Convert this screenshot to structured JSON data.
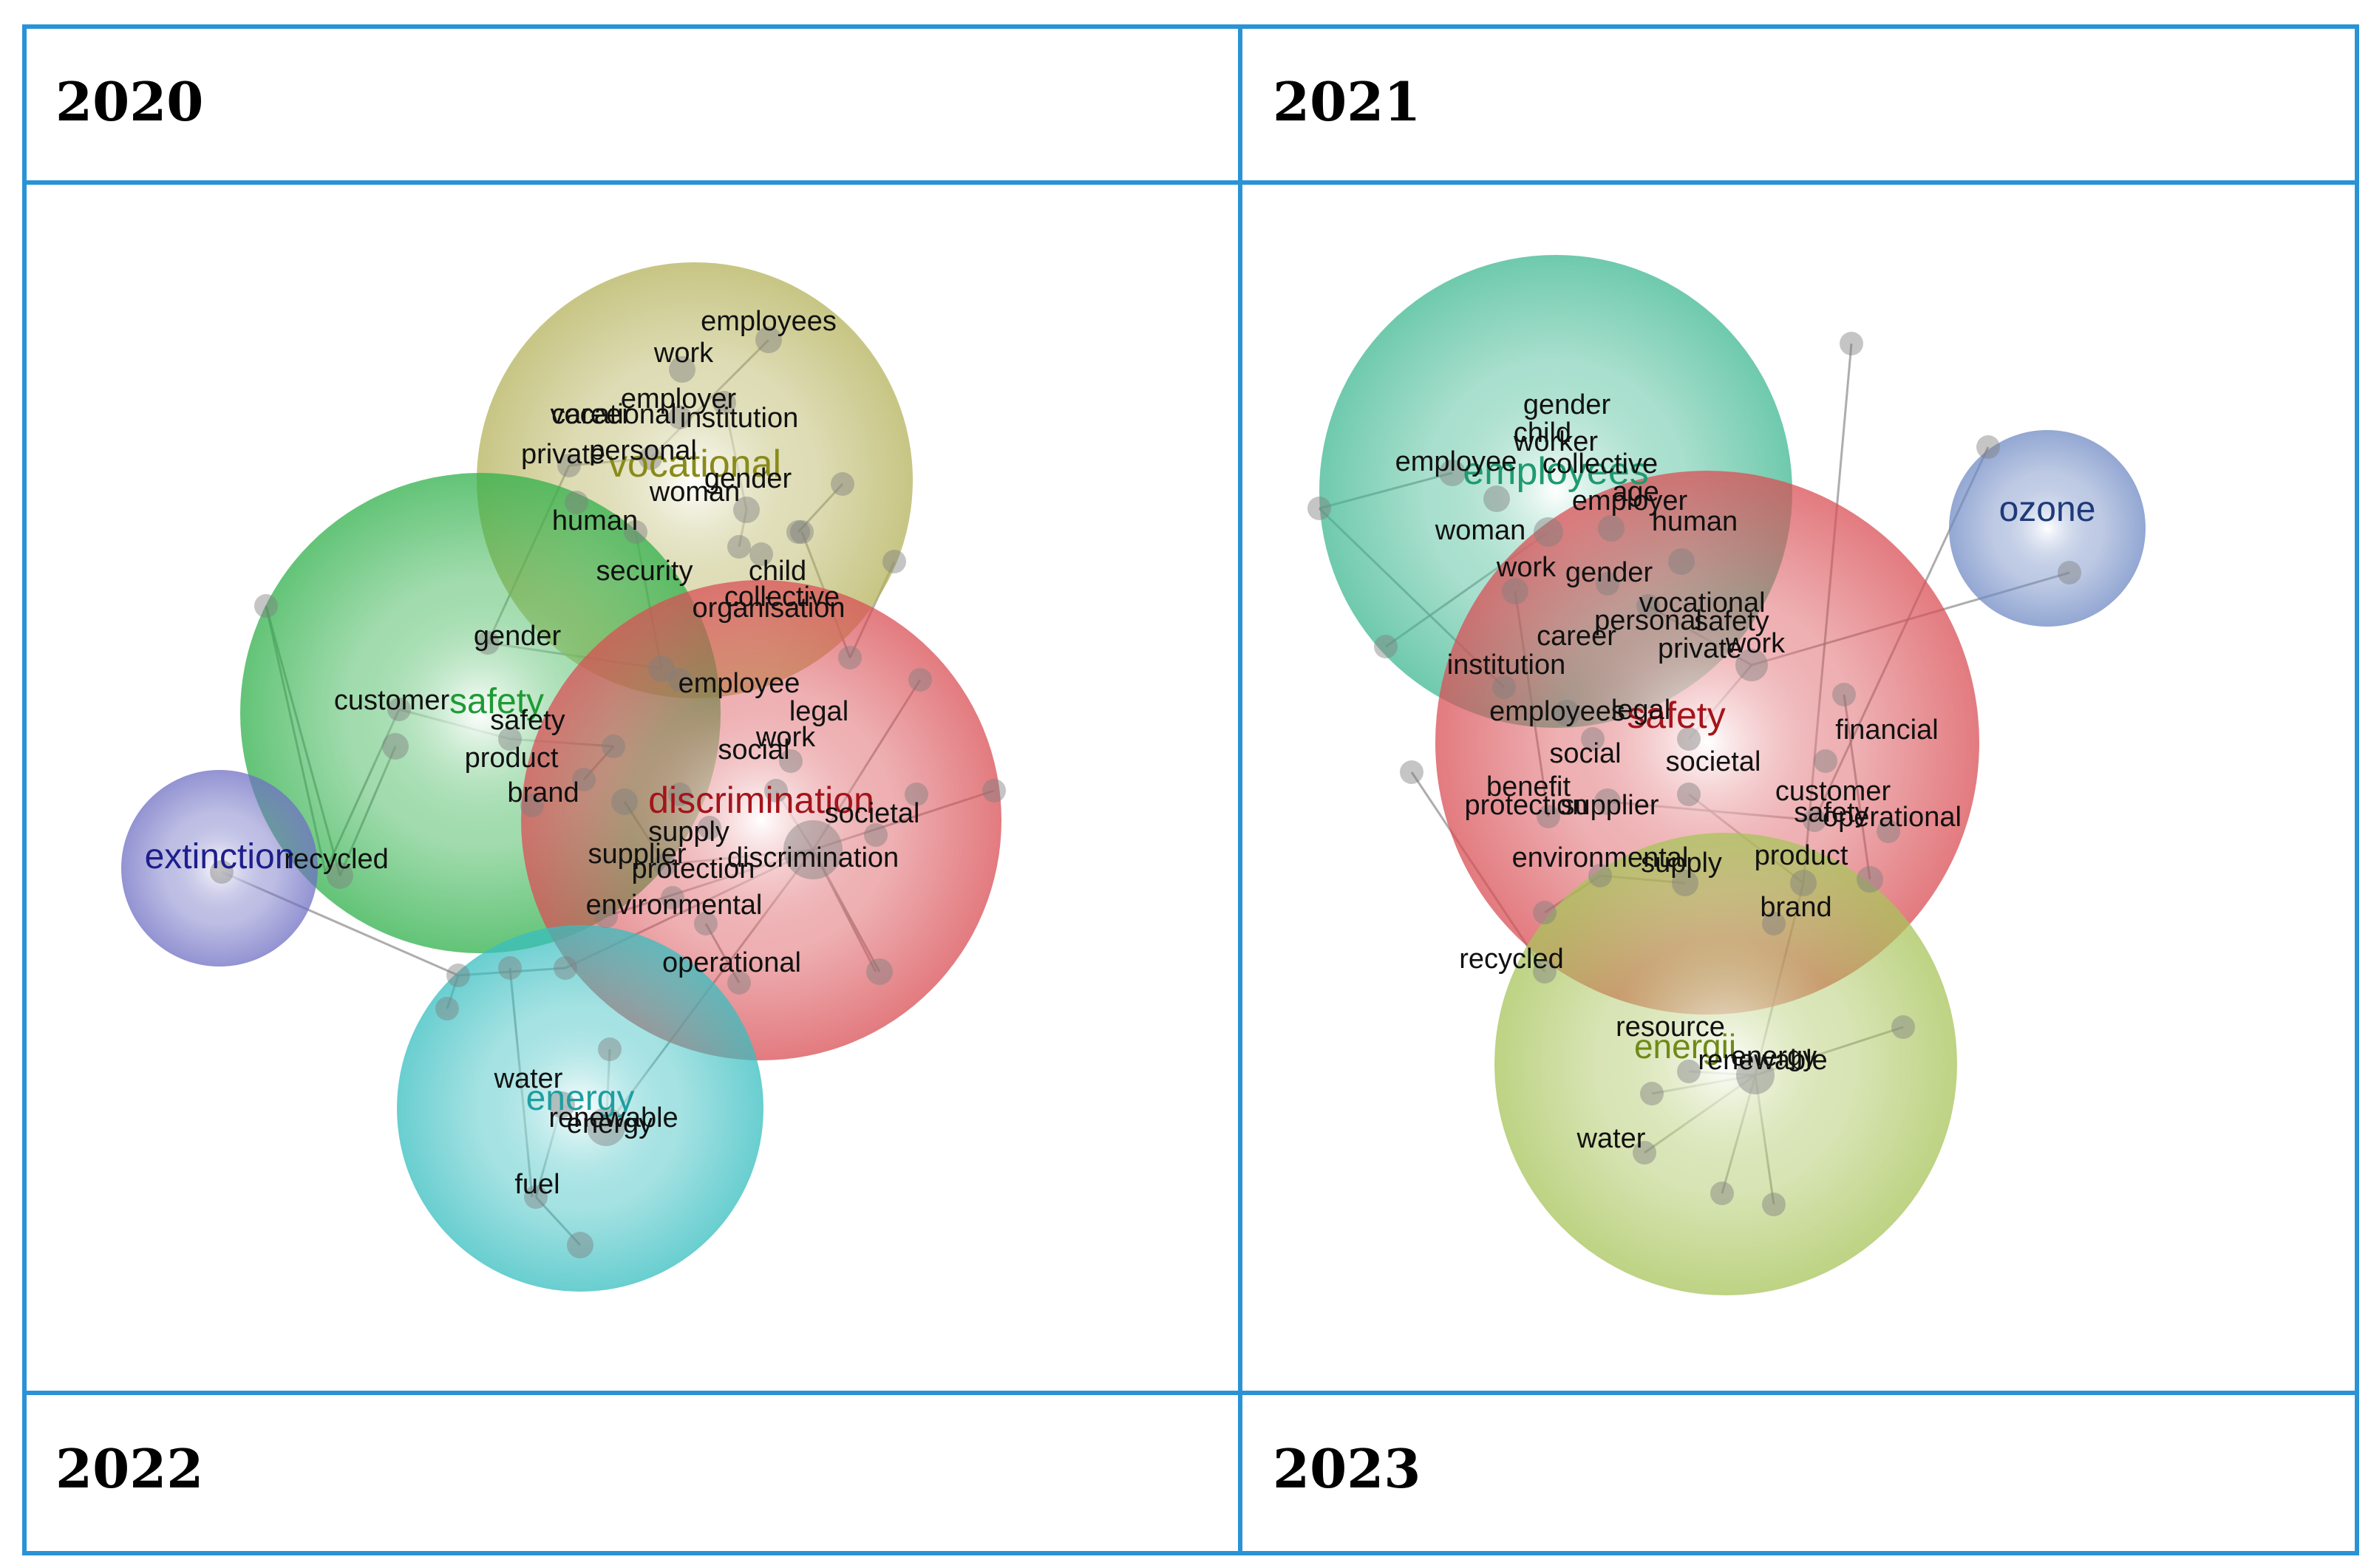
{
  "grid": {
    "border_color": "#2a93d5",
    "cells": [
      {
        "label": "2020"
      },
      {
        "label": "2021"
      },
      {
        "label": "2022"
      },
      {
        "label": "2023"
      }
    ]
  },
  "diagram_left": {
    "clusters": [
      {
        "name": "vocational",
        "color": "#b5b25b",
        "label_color": "#8a8a1a"
      },
      {
        "name": "safety",
        "color": "#2fb04a",
        "label_color": "#1f9a35"
      },
      {
        "name": "discrimination",
        "color": "#d94f55",
        "label_color": "#a4141b"
      },
      {
        "name": "extinction",
        "color": "#6f6fc4",
        "label_color": "#1e1e8c"
      },
      {
        "name": "energy",
        "color": "#37bec0",
        "label_color": "#1f9ea0"
      }
    ],
    "terms": [
      "employees",
      "work",
      "employer",
      "vocational",
      "career",
      "institution",
      "private",
      "personal",
      "woman",
      "gender",
      "human",
      "security",
      "child",
      "collective",
      "organisation",
      "gender",
      "employee",
      "legal",
      "customer",
      "safety",
      "product",
      "brand",
      "social",
      "work",
      "societal",
      "supply",
      "supplier",
      "discrimination",
      "protection",
      "environmental",
      "recycled",
      "operational",
      "water",
      "renewable",
      "energy",
      "fuel"
    ]
  },
  "diagram_right": {
    "clusters": [
      {
        "name": "employees",
        "color": "#3fb891",
        "label_color": "#1f9a70"
      },
      {
        "name": "safety",
        "color": "#d94f55",
        "label_color": "#a4141b"
      },
      {
        "name": "ozone",
        "color": "#6f8ac4",
        "label_color": "#1e3a7a"
      },
      {
        "name": "energii",
        "color": "#a8c45a",
        "label_color": "#6f8a16"
      }
    ],
    "terms": [
      "gender",
      "child",
      "worker",
      "employee",
      "collective",
      "age",
      "employer",
      "human",
      "woman",
      "work",
      "gender",
      "vocational",
      "personal",
      "safety",
      "career",
      "private",
      "work",
      "institution",
      "employees",
      "legal",
      "financial",
      "social",
      "societal",
      "benefit",
      "protection",
      "supplier",
      "customer",
      "safety",
      "operational",
      "environmental",
      "supply",
      "product",
      "brand",
      "recycled",
      "resource",
      "energy",
      "renewable",
      "water"
    ]
  }
}
